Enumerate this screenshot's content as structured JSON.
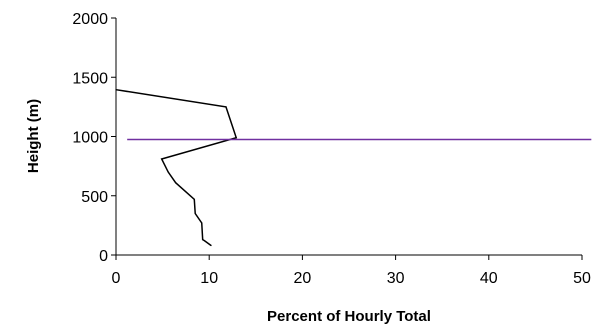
{
  "chart_data": {
    "type": "line",
    "title": "",
    "xlabel": "Percent of Hourly Total",
    "ylabel": "Height (m)",
    "xlim": [
      0,
      50
    ],
    "ylim": [
      0,
      2000
    ],
    "x_ticks": [
      0,
      10,
      20,
      30,
      40,
      50
    ],
    "y_ticks": [
      0,
      500,
      1000,
      1500,
      2000
    ],
    "grid": false,
    "legend": "none",
    "series": [
      {
        "color": "#000000",
        "points": [
          {
            "x": 10.2,
            "y": 80
          },
          {
            "x": 9.5,
            "y": 120
          },
          {
            "x": 9.3,
            "y": 130
          },
          {
            "x": 9.2,
            "y": 270
          },
          {
            "x": 8.5,
            "y": 350
          },
          {
            "x": 8.4,
            "y": 470
          },
          {
            "x": 6.4,
            "y": 610
          },
          {
            "x": 5.6,
            "y": 700
          },
          {
            "x": 4.9,
            "y": 810
          },
          {
            "x": 12.9,
            "y": 990
          },
          {
            "x": 11.8,
            "y": 1250
          },
          {
            "x": 0,
            "y": 1395
          }
        ]
      }
    ],
    "reference_lines": [
      {
        "orientation": "horizontal",
        "y": 975,
        "x_from": 1.2,
        "x_to": 51,
        "color": "#7030A0"
      }
    ]
  }
}
